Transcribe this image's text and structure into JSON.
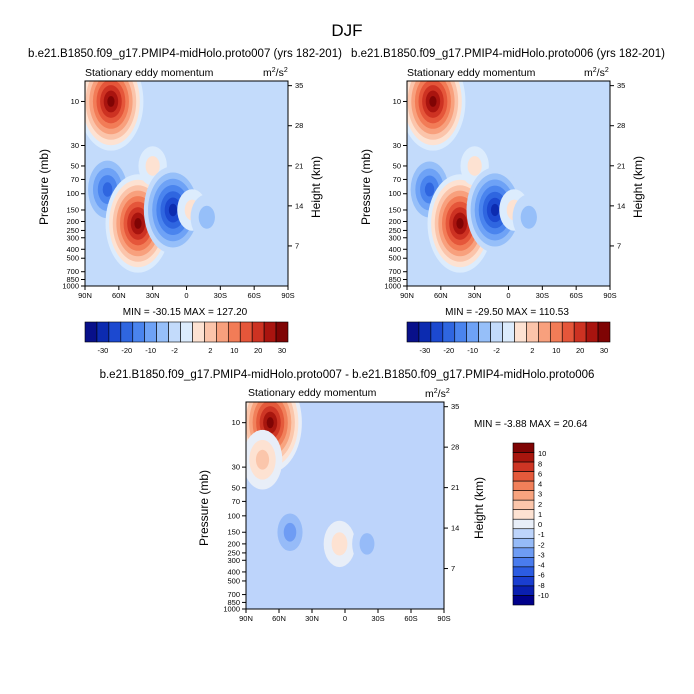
{
  "page_title": "DJF",
  "colors": {
    "full_palette": [
      "#08108a",
      "#0c2bb0",
      "#1c49d0",
      "#2f66e0",
      "#4a84ee",
      "#6ea2f6",
      "#96bff9",
      "#c3dbfb",
      "#dcecfd",
      "#fde2d2",
      "#fbc4aa",
      "#f8a07d",
      "#f27c57",
      "#e5563a",
      "#cd3222",
      "#a9140f",
      "#7f0404"
    ],
    "diff_palette": [
      "#00008a",
      "#0a1fb0",
      "#1a3ed0",
      "#2c5ce2",
      "#4a7cee",
      "#6e9cf4",
      "#96bbf8",
      "#bdd4fb",
      "#e8eef8",
      "#fde2d2",
      "#fbc6ab",
      "#f8a47f",
      "#f1805a",
      "#e45a3b",
      "#cd3524",
      "#a8160e",
      "#7f0404"
    ]
  },
  "chart_data": [
    {
      "type": "heatmap",
      "title": "b.e21.B1850.f09_g17.PMIP4-midHolo.proto007 (yrs 182-201)",
      "field_label": "Stationary eddy momentum",
      "units_label": "m",
      "units_sup1": "2",
      "units_mid": "/s",
      "units_sup2": "2",
      "ylabel": "Pressure (mb)",
      "y2label": "Height (km)",
      "x_ticks": [
        "90N",
        "60N",
        "30N",
        "0",
        "30S",
        "60S",
        "90S"
      ],
      "y_ticks": [
        "10",
        "30",
        "50",
        "70",
        "100",
        "150",
        "200",
        "250",
        "300",
        "400",
        "500",
        "700",
        "850",
        "1000"
      ],
      "y2_ticks": [
        "35",
        "28",
        "21",
        "14",
        "7"
      ],
      "stats": "MIN = -30.15   MAX = 127.20",
      "min": -30.15,
      "max": 127.2,
      "colorbar_levels": [
        "-30",
        "-20",
        "-10",
        "-2",
        "2",
        "10",
        "20",
        "30"
      ],
      "features": [
        {
          "lat": 67,
          "p": 10,
          "value": 120
        },
        {
          "lat": 70,
          "p": 90,
          "value": -18
        },
        {
          "lat": 43,
          "p": 210,
          "value": 40
        },
        {
          "lat": 30,
          "p": 50,
          "value": 3
        },
        {
          "lat": 12,
          "p": 150,
          "value": -25
        },
        {
          "lat": -5,
          "p": 150,
          "value": 4
        },
        {
          "lat": -18,
          "p": 180,
          "value": -6
        }
      ]
    },
    {
      "type": "heatmap",
      "title": "b.e21.B1850.f09_g17.PMIP4-midHolo.proto006 (yrs 182-201)",
      "field_label": "Stationary eddy momentum",
      "units_label": "m",
      "units_sup1": "2",
      "units_mid": "/s",
      "units_sup2": "2",
      "ylabel": "Pressure (mb)",
      "y2label": "Height (km)",
      "x_ticks": [
        "90N",
        "60N",
        "30N",
        "0",
        "30S",
        "60S",
        "90S"
      ],
      "y_ticks": [
        "10",
        "30",
        "50",
        "70",
        "100",
        "150",
        "200",
        "250",
        "300",
        "400",
        "500",
        "700",
        "850",
        "1000"
      ],
      "y2_ticks": [
        "35",
        "28",
        "21",
        "14",
        "7"
      ],
      "stats": "MIN = -29.50   MAX = 110.53",
      "min": -29.5,
      "max": 110.53,
      "colorbar_levels": [
        "-30",
        "-20",
        "-10",
        "-2",
        "2",
        "10",
        "20",
        "30"
      ],
      "features": [
        {
          "lat": 67,
          "p": 10,
          "value": 105
        },
        {
          "lat": 70,
          "p": 90,
          "value": -17
        },
        {
          "lat": 43,
          "p": 210,
          "value": 38
        },
        {
          "lat": 30,
          "p": 50,
          "value": 3
        },
        {
          "lat": 12,
          "p": 150,
          "value": -24
        },
        {
          "lat": -5,
          "p": 150,
          "value": 4
        },
        {
          "lat": -18,
          "p": 180,
          "value": -6
        }
      ]
    },
    {
      "type": "heatmap",
      "title": "b.e21.B1850.f09_g17.PMIP4-midHolo.proto007 - b.e21.B1850.f09_g17.PMIP4-midHolo.proto006",
      "field_label": "Stationary eddy momentum",
      "units_label": "m",
      "units_sup1": "2",
      "units_mid": "/s",
      "units_sup2": "2",
      "ylabel": "Pressure (mb)",
      "y2label": "Height (km)",
      "x_ticks": [
        "90N",
        "60N",
        "30N",
        "0",
        "30S",
        "60S",
        "90S"
      ],
      "y_ticks": [
        "10",
        "30",
        "50",
        "70",
        "100",
        "150",
        "200",
        "250",
        "300",
        "400",
        "500",
        "700",
        "850",
        "1000"
      ],
      "y2_ticks": [
        "35",
        "28",
        "21",
        "14",
        "7"
      ],
      "stats": "MIN = -3.88   MAX = 20.64",
      "min": -3.88,
      "max": 20.64,
      "colorbar_levels": [
        "10",
        "8",
        "6",
        "4",
        "3",
        "2",
        "1",
        "0",
        "-1",
        "-2",
        "-3",
        "-4",
        "-6",
        "-8",
        "-10"
      ],
      "features": [
        {
          "lat": 68,
          "p": 10,
          "value": 16
        },
        {
          "lat": 75,
          "p": 25,
          "value": 4
        },
        {
          "lat": 50,
          "p": 150,
          "value": -3.5
        },
        {
          "lat": 5,
          "p": 200,
          "value": 2
        },
        {
          "lat": -20,
          "p": 200,
          "value": -1.5
        }
      ]
    }
  ]
}
